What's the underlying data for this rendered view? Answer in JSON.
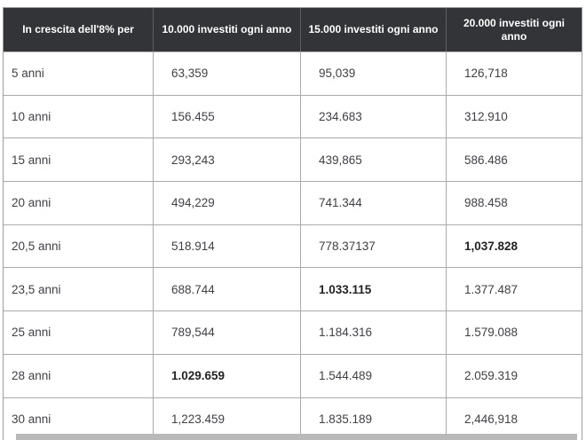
{
  "chart_data": {
    "type": "table",
    "columns": [
      "In crescita dell'8% per",
      "10.000 investiti ogni anno",
      "15.000 investiti ogni anno",
      "20.000 investiti ogni anno"
    ],
    "rows": [
      {
        "label": "5 anni",
        "values": [
          "63,359",
          "95,039",
          "126,718"
        ],
        "bold_index": -1
      },
      {
        "label": "10 anni",
        "values": [
          "156.455",
          "234.683",
          "312.910"
        ],
        "bold_index": -1
      },
      {
        "label": "15 anni",
        "values": [
          "293,243",
          "439,865",
          "586.486"
        ],
        "bold_index": -1
      },
      {
        "label": "20 anni",
        "values": [
          "494,229",
          "741.344",
          "988.458"
        ],
        "bold_index": -1
      },
      {
        "label": "20,5 anni",
        "values": [
          "518.914",
          "778.37137",
          "1,037.828"
        ],
        "bold_index": 2
      },
      {
        "label": "23,5 anni",
        "values": [
          "688.744",
          "1.033.115",
          "1.377.487"
        ],
        "bold_index": 1
      },
      {
        "label": "25 anni",
        "values": [
          "789,544",
          "1.184.316",
          "1.579.088"
        ],
        "bold_index": -1
      },
      {
        "label": "28 anni",
        "values": [
          "1.029.659",
          "1.544.489",
          "2.059.319"
        ],
        "bold_index": 0
      },
      {
        "label": "30 anni",
        "values": [
          "1,223.459",
          "1.835.189",
          "2,446,918"
        ],
        "bold_index": -1
      }
    ]
  },
  "colors": {
    "header_bg": "#333438",
    "header_text": "#ffffff",
    "header_divider": "#5d5e62",
    "border_outer": "#9d9d9d",
    "border_inner": "#aaaaaa",
    "cell_text": "#3f3f46",
    "bold_text": "#232326",
    "shadow": "#b9b9b9"
  }
}
